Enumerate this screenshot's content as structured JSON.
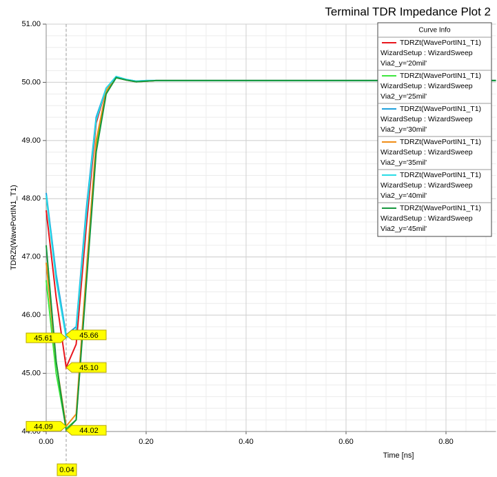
{
  "chart_data": {
    "type": "line",
    "title": "Terminal TDR Impedance Plot 2",
    "xlabel": "Time [ns]",
    "ylabel": "TDRZt(WavePortIN1_T1)",
    "legend_title": "Curve Info",
    "legend": "upper right",
    "grid": true,
    "xlim": [
      0,
      0.9
    ],
    "ylim": [
      44,
      51
    ],
    "xticks": [
      {
        "value": 0,
        "label": "0.00"
      },
      {
        "value": 0.2,
        "label": "0.20"
      },
      {
        "value": 0.4,
        "label": "0.40"
      },
      {
        "value": 0.6,
        "label": "0.60"
      },
      {
        "value": 0.8,
        "label": "0.80"
      }
    ],
    "yticks": [
      {
        "value": 44,
        "label": "44.00"
      },
      {
        "value": 45,
        "label": "45.00"
      },
      {
        "value": 46,
        "label": "46.00"
      },
      {
        "value": 47,
        "label": "47.00"
      },
      {
        "value": 48,
        "label": "48.00"
      },
      {
        "value": 49,
        "label": "49.00"
      },
      {
        "value": 50,
        "label": "50.00"
      },
      {
        "value": 51,
        "label": "51.00"
      }
    ],
    "x": [
      0,
      0.02,
      0.04,
      0.06,
      0.08,
      0.1,
      0.12,
      0.14,
      0.16,
      0.18,
      0.2,
      0.22,
      0.9
    ],
    "series": [
      {
        "name": "TDRZt(WavePortIN1_T1)",
        "setup": "WizardSetup : WizardSweep",
        "variation": "Via2_y='20mil'",
        "color": "#e8141b",
        "values": [
          47.8,
          46.3,
          45.1,
          45.5,
          47.5,
          49.3,
          49.9,
          50.08,
          50.04,
          50.01,
          50.02,
          50.03,
          50.03
        ]
      },
      {
        "name": "TDRZt(WavePortIN1_T1)",
        "setup": "WizardSetup : WizardSweep",
        "variation": "Via2_y='25mil'",
        "color": "#3ce63c",
        "values": [
          46.6,
          45.0,
          44.05,
          44.2,
          46.6,
          48.9,
          49.85,
          50.08,
          50.04,
          50.01,
          50.02,
          50.03,
          50.03
        ]
      },
      {
        "name": "TDRZt(WavePortIN1_T1)",
        "setup": "WizardSetup : WizardSweep",
        "variation": "Via2_y='30mil'",
        "color": "#1ea0dc",
        "values": [
          48.1,
          46.7,
          45.66,
          45.8,
          47.8,
          49.4,
          49.9,
          50.1,
          50.05,
          50.02,
          50.03,
          50.03,
          50.03
        ]
      },
      {
        "name": "TDRZt(WavePortIN1_T1)",
        "setup": "WizardSetup : WizardSweep",
        "variation": "Via2_y='35mil'",
        "color": "#f08c14",
        "values": [
          46.9,
          45.2,
          44.09,
          44.3,
          46.7,
          49.0,
          49.85,
          50.08,
          50.04,
          50.01,
          50.02,
          50.03,
          50.03
        ]
      },
      {
        "name": "TDRZt(WavePortIN1_T1)",
        "setup": "WizardSetup : WizardSweep",
        "variation": "Via2_y='40mil'",
        "color": "#28dce6",
        "values": [
          48.05,
          46.6,
          45.61,
          45.75,
          47.7,
          49.35,
          49.9,
          50.1,
          50.05,
          50.02,
          50.03,
          50.03,
          50.03
        ]
      },
      {
        "name": "TDRZt(WavePortIN1_T1)",
        "setup": "WizardSetup : WizardSweep",
        "variation": "Via2_y='45mil'",
        "color": "#14963c",
        "values": [
          47.2,
          45.2,
          44.02,
          44.2,
          46.5,
          48.8,
          49.8,
          50.08,
          50.04,
          50.01,
          50.02,
          50.03,
          50.03
        ]
      }
    ],
    "cursor_x": 0.04,
    "markers": [
      {
        "x": 0.04,
        "value": 45.61,
        "label": "45.61"
      },
      {
        "x": 0.04,
        "value": 45.66,
        "label": "45.66"
      },
      {
        "x": 0.04,
        "value": 45.1,
        "label": "45.10"
      },
      {
        "x": 0.04,
        "value": 44.09,
        "label": "44.09"
      },
      {
        "x": 0.04,
        "value": 44.02,
        "label": "44.02"
      }
    ]
  }
}
